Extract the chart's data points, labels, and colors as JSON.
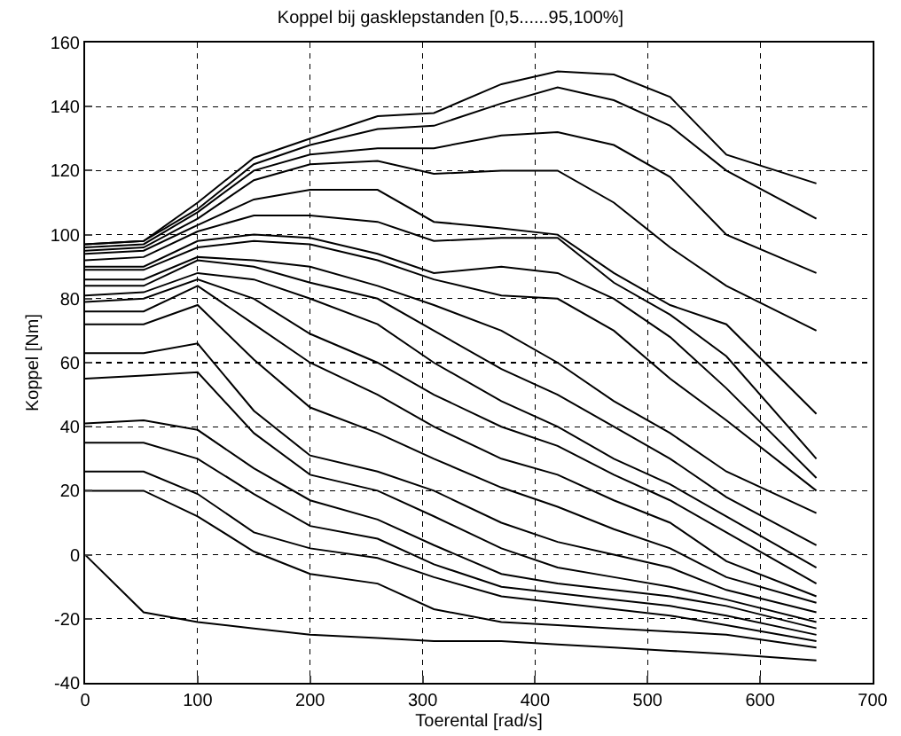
{
  "chart_data": {
    "type": "line",
    "title": "Koppel bij gasklepstanden [0,5......95,100%]",
    "xlabel": "Toerental [rad/s]",
    "ylabel": "Koppel [Nm]",
    "x": [
      0,
      52,
      100,
      150,
      200,
      260,
      310,
      370,
      420,
      470,
      520,
      570,
      650
    ],
    "xlim": [
      0,
      700
    ],
    "xticks": [
      0,
      100,
      200,
      300,
      400,
      500,
      600,
      700
    ],
    "ylim": [
      -40,
      160
    ],
    "yticks": [
      -40,
      -20,
      0,
      20,
      40,
      60,
      80,
      100,
      120,
      140,
      160
    ],
    "grid": true,
    "marker": "none",
    "line_style": "solid",
    "series": [
      {
        "color": "#000000",
        "values": [
          0,
          -18,
          -21,
          -23,
          -25,
          -26,
          -27,
          -27,
          -28,
          -29,
          -30,
          -31,
          -33
        ]
      },
      {
        "color": "#000000",
        "values": [
          20,
          20,
          12,
          1,
          -6,
          -9,
          -17,
          -21,
          -22,
          -23,
          -24,
          -25,
          -29
        ]
      },
      {
        "color": "#000000",
        "values": [
          26,
          26,
          19,
          7,
          2,
          -1,
          -7,
          -13,
          -15,
          -17,
          -19,
          -22,
          -27
        ]
      },
      {
        "color": "#000000",
        "values": [
          35,
          35,
          30,
          19,
          9,
          5,
          -3,
          -10,
          -12,
          -14,
          -16,
          -19,
          -25
        ]
      },
      {
        "color": "#000000",
        "values": [
          41,
          42,
          39,
          27,
          17,
          11,
          3,
          -6,
          -9,
          -11,
          -13,
          -16,
          -23
        ]
      },
      {
        "color": "#000000",
        "values": [
          55,
          56,
          57,
          38,
          25,
          20,
          12,
          2,
          -4,
          -7,
          -10,
          -14,
          -21
        ]
      },
      {
        "color": "#000000",
        "values": [
          63,
          63,
          66,
          45,
          31,
          26,
          20,
          10,
          4,
          0,
          -4,
          -11,
          -18
        ]
      },
      {
        "color": "#000000",
        "values": [
          72,
          72,
          78,
          61,
          46,
          38,
          30,
          21,
          15,
          8,
          2,
          -7,
          -15
        ]
      },
      {
        "color": "#000000",
        "values": [
          76,
          76,
          84,
          72,
          60,
          50,
          40,
          30,
          25,
          17,
          10,
          -2,
          -13
        ]
      },
      {
        "color": "#000000",
        "values": [
          79,
          80,
          86,
          80,
          69,
          60,
          50,
          40,
          34,
          25,
          17,
          7,
          -9
        ]
      },
      {
        "color": "#000000",
        "values": [
          81,
          82,
          88,
          86,
          80,
          72,
          60,
          48,
          40,
          30,
          22,
          12,
          -4
        ]
      },
      {
        "color": "#000000",
        "values": [
          84,
          84,
          92,
          90,
          85,
          80,
          70,
          58,
          50,
          40,
          30,
          18,
          3
        ]
      },
      {
        "color": "#000000",
        "values": [
          86,
          86,
          93,
          92,
          90,
          84,
          78,
          70,
          60,
          48,
          38,
          26,
          13
        ]
      },
      {
        "color": "#000000",
        "values": [
          89,
          89,
          96,
          98,
          97,
          92,
          86,
          81,
          80,
          70,
          55,
          42,
          20
        ]
      },
      {
        "color": "#000000",
        "values": [
          90,
          90,
          98,
          100,
          99,
          94,
          88,
          90,
          88,
          80,
          68,
          52,
          24
        ]
      },
      {
        "color": "#000000",
        "values": [
          92,
          93,
          101,
          106,
          106,
          104,
          98,
          99,
          99,
          85,
          75,
          62,
          30
        ]
      },
      {
        "color": "#000000",
        "values": [
          94,
          95,
          103,
          111,
          114,
          114,
          104,
          102,
          100,
          88,
          78,
          72,
          44
        ]
      },
      {
        "color": "#000000",
        "values": [
          95,
          96,
          105,
          117,
          122,
          123,
          119,
          120,
          120,
          110,
          96,
          84,
          70
        ]
      },
      {
        "color": "#000000",
        "values": [
          96,
          97,
          107,
          120,
          125,
          127,
          127,
          131,
          132,
          128,
          118,
          100,
          88
        ]
      },
      {
        "color": "#000000",
        "values": [
          97,
          98,
          108,
          122,
          128,
          133,
          134,
          141,
          146,
          142,
          134,
          120,
          105
        ]
      },
      {
        "color": "#000000",
        "values": [
          97,
          98,
          110,
          124,
          130,
          137,
          138,
          147,
          151,
          150,
          143,
          125,
          116
        ]
      }
    ]
  }
}
